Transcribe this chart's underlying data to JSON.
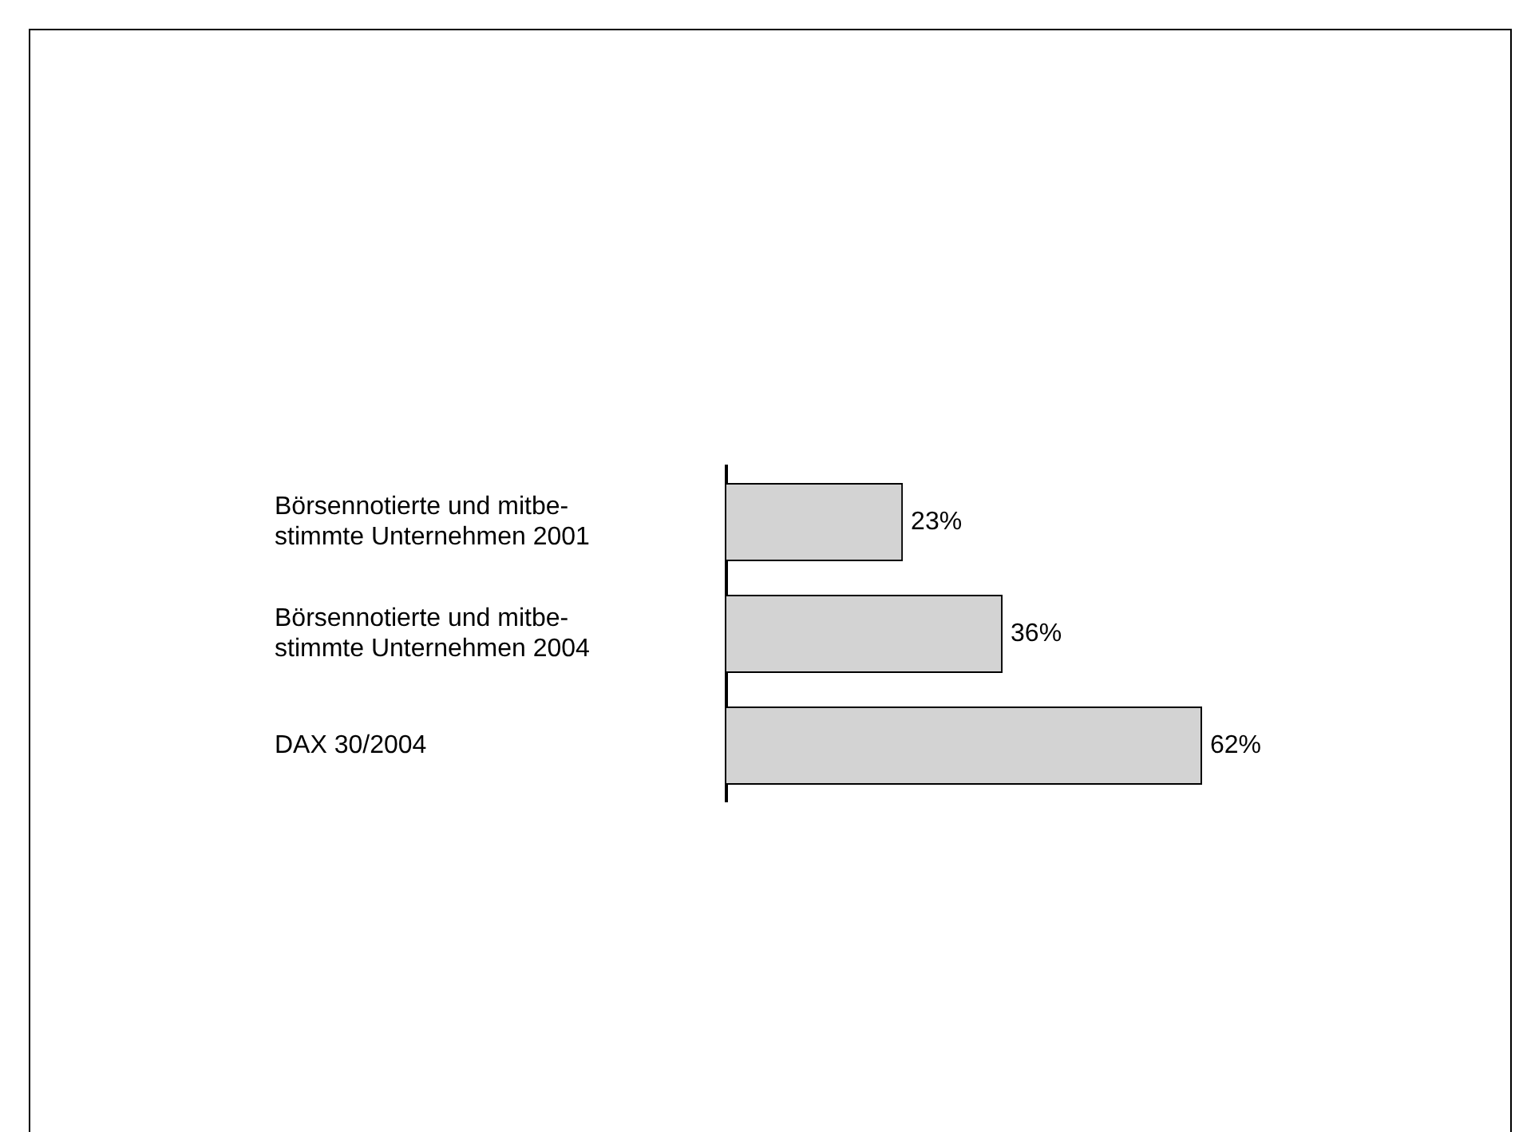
{
  "chart_data": {
    "type": "bar",
    "orientation": "horizontal",
    "categories": [
      "Börsennotierte und mitbe-\nstimmte Unternehmen 2001",
      "Börsennotierte und mitbe-\nstimmte Unternehmen 2004",
      "DAX 30/2004"
    ],
    "values": [
      23,
      36,
      62
    ],
    "value_labels": [
      "23%",
      "36%",
      "62%"
    ],
    "color": "#d3d3d3",
    "xlim": [
      0,
      62
    ],
    "legend": false
  }
}
